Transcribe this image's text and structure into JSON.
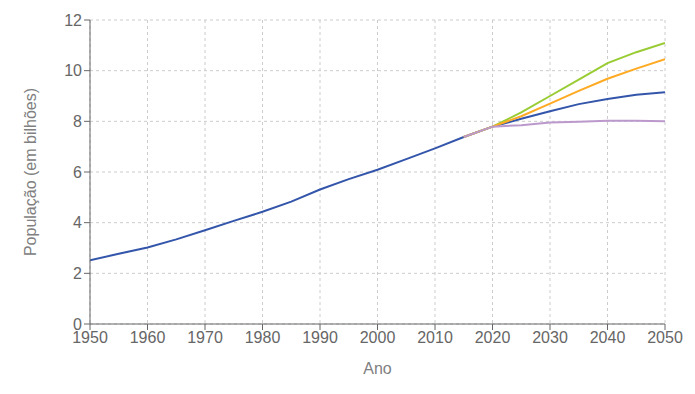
{
  "chart_data": {
    "type": "line",
    "xlabel": "Ano",
    "ylabel": "População (em bilhões)",
    "x": [
      1950,
      1955,
      1960,
      1965,
      1970,
      1975,
      1980,
      1985,
      1990,
      1995,
      2000,
      2005,
      2010,
      2015,
      2020,
      2025,
      2030,
      2035,
      2040,
      2045,
      2050
    ],
    "series": [
      {
        "color": "#3355aa",
        "values": [
          2.52,
          2.77,
          3.02,
          3.34,
          3.7,
          4.07,
          4.43,
          4.83,
          5.31,
          5.72,
          6.09,
          6.51,
          6.93,
          7.38,
          7.79,
          8.1,
          8.4,
          8.68,
          8.88,
          9.05,
          9.15
        ]
      },
      {
        "color": "#99cc33",
        "values": [
          null,
          null,
          null,
          null,
          null,
          null,
          null,
          null,
          null,
          null,
          null,
          null,
          null,
          7.38,
          7.79,
          8.35,
          9.0,
          9.65,
          10.3,
          10.73,
          11.09
        ]
      },
      {
        "color": "#ffaa22",
        "values": [
          null,
          null,
          null,
          null,
          null,
          null,
          null,
          null,
          null,
          null,
          null,
          null,
          null,
          7.38,
          7.79,
          8.2,
          8.7,
          9.2,
          9.68,
          10.08,
          10.45
        ]
      },
      {
        "color": "#bb99cc",
        "values": [
          null,
          null,
          null,
          null,
          null,
          null,
          null,
          null,
          null,
          null,
          null,
          null,
          null,
          7.38,
          7.79,
          7.85,
          7.95,
          7.98,
          8.02,
          8.02,
          8.0
        ]
      }
    ],
    "xlim": [
      1950,
      2050
    ],
    "ylim": [
      0,
      12
    ],
    "xticks": [
      1950,
      1960,
      1970,
      1980,
      1990,
      2000,
      2010,
      2020,
      2030,
      2040,
      2050
    ],
    "yticks": [
      0,
      2,
      4,
      6,
      8,
      10,
      12
    ],
    "grid": true
  }
}
